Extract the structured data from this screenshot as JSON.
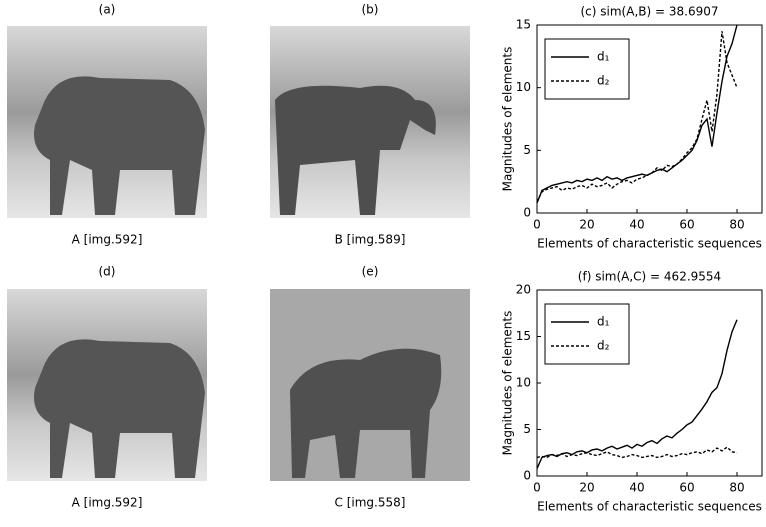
{
  "panels": [
    {
      "label": "(a)",
      "caption": "A [img.592]"
    },
    {
      "label": "(b)",
      "caption": "B [img.589]"
    },
    {
      "label": "(d)",
      "caption": "A [img.592]"
    },
    {
      "label": "(e)",
      "caption": "C [img.558]"
    }
  ],
  "chart_data": [
    {
      "type": "line",
      "title": "(c) sim(A,B) = 38.6907",
      "x_label": "Elements of characteristic sequences",
      "y_label": "Magnitudes of elements",
      "x": [
        0,
        2,
        4,
        6,
        8,
        10,
        12,
        14,
        16,
        18,
        20,
        22,
        24,
        26,
        28,
        30,
        32,
        34,
        36,
        38,
        40,
        42,
        44,
        46,
        48,
        50,
        52,
        54,
        56,
        58,
        60,
        62,
        64,
        66,
        68,
        70,
        72,
        74,
        76,
        78,
        80
      ],
      "series": [
        {
          "name": "d₁",
          "color": "#000000",
          "linestyle": "solid",
          "values": [
            0.8,
            1.8,
            2.0,
            2.2,
            2.3,
            2.4,
            2.5,
            2.4,
            2.6,
            2.5,
            2.7,
            2.6,
            2.8,
            2.6,
            2.9,
            2.7,
            2.8,
            2.6,
            2.8,
            2.9,
            3.0,
            3.1,
            3.0,
            3.2,
            3.4,
            3.5,
            3.3,
            3.6,
            3.9,
            4.2,
            4.6,
            5.0,
            5.8,
            7.0,
            7.5,
            5.3,
            8.0,
            10.5,
            12.5,
            13.5,
            15.0
          ]
        },
        {
          "name": "d₂",
          "color": "#000000",
          "linestyle": "dashed",
          "values": [
            0.9,
            1.7,
            1.9,
            2.0,
            2.1,
            1.8,
            2.0,
            1.9,
            2.1,
            2.2,
            2.0,
            2.3,
            2.1,
            2.2,
            2.4,
            2.0,
            2.3,
            2.5,
            2.6,
            2.4,
            2.7,
            2.8,
            3.0,
            3.2,
            3.6,
            3.4,
            3.8,
            3.7,
            3.9,
            4.3,
            4.8,
            5.2,
            5.9,
            7.5,
            9.0,
            6.5,
            9.5,
            14.5,
            12.0,
            11.0,
            10.0
          ]
        }
      ],
      "xlim": [
        0,
        90
      ],
      "xticks": [
        0,
        20,
        40,
        60,
        80
      ],
      "ylim": [
        0,
        15
      ],
      "yticks": [
        0,
        5,
        10,
        15
      ],
      "legend": "upper left"
    },
    {
      "type": "line",
      "title": "(f) sim(A,C) = 462.9554",
      "x_label": "Elements of characteristic sequences",
      "y_label": "Magnitudes of elements",
      "x": [
        0,
        2,
        4,
        6,
        8,
        10,
        12,
        14,
        16,
        18,
        20,
        22,
        24,
        26,
        28,
        30,
        32,
        34,
        36,
        38,
        40,
        42,
        44,
        46,
        48,
        50,
        52,
        54,
        56,
        58,
        60,
        62,
        64,
        66,
        68,
        70,
        72,
        74,
        76,
        78,
        80
      ],
      "series": [
        {
          "name": "d₁",
          "color": "#000000",
          "linestyle": "solid",
          "values": [
            0.8,
            2.0,
            2.2,
            2.3,
            2.1,
            2.4,
            2.5,
            2.3,
            2.6,
            2.7,
            2.5,
            2.8,
            2.9,
            2.7,
            3.0,
            3.2,
            2.9,
            3.1,
            3.3,
            3.0,
            3.4,
            3.2,
            3.6,
            3.8,
            3.5,
            4.0,
            4.3,
            4.1,
            4.6,
            5.0,
            5.5,
            5.8,
            6.5,
            7.2,
            8.0,
            9.0,
            9.5,
            11.0,
            13.5,
            15.5,
            16.8
          ]
        },
        {
          "name": "d₂",
          "color": "#000000",
          "linestyle": "dashed",
          "values": [
            2.0,
            2.1,
            2.0,
            2.3,
            2.2,
            2.4,
            2.1,
            2.3,
            2.2,
            2.4,
            2.5,
            2.3,
            2.2,
            2.4,
            2.6,
            2.3,
            2.2,
            2.0,
            2.1,
            2.3,
            2.2,
            2.0,
            2.1,
            2.2,
            2.0,
            2.1,
            2.3,
            2.1,
            2.2,
            2.4,
            2.3,
            2.5,
            2.6,
            2.4,
            2.8,
            2.6,
            3.0,
            2.7,
            3.1,
            2.6,
            2.5
          ]
        }
      ],
      "xlim": [
        0,
        90
      ],
      "xticks": [
        0,
        20,
        40,
        60,
        80
      ],
      "ylim": [
        0,
        20
      ],
      "yticks": [
        0,
        5,
        10,
        15,
        20
      ],
      "legend": "upper left"
    }
  ]
}
